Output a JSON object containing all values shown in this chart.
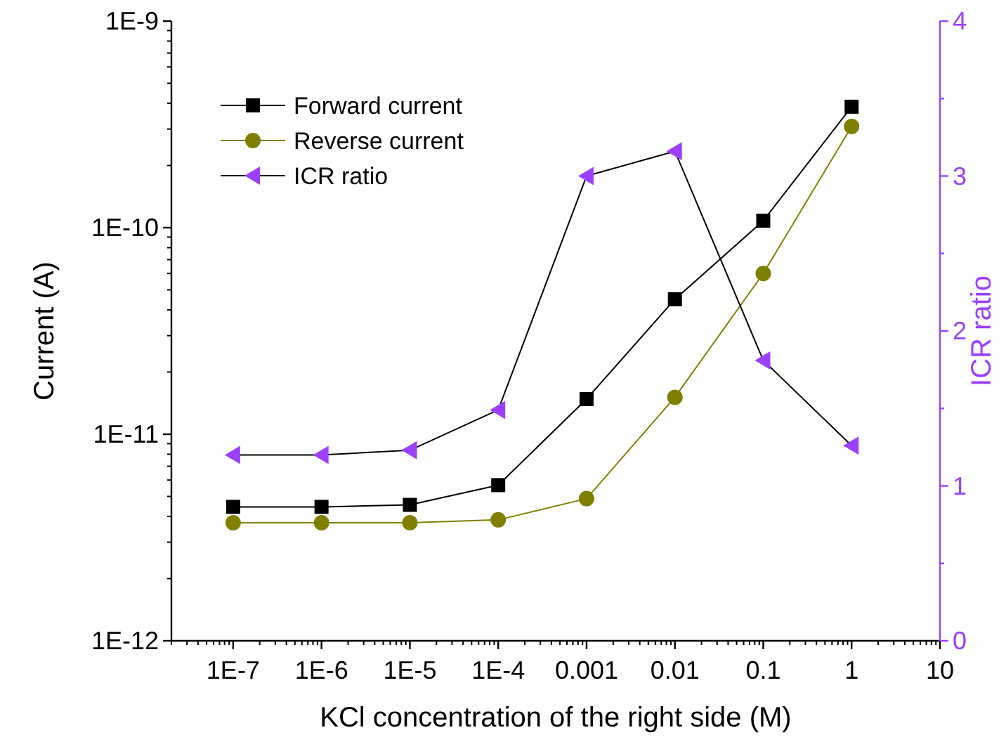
{
  "chart_data": {
    "type": "line",
    "xlabel": "KCl concentration of the right side (M)",
    "ylabel": "Current (A)",
    "y2label": "ICR ratio",
    "x": [
      1e-07,
      1e-06,
      1e-05,
      0.0001,
      0.001,
      0.01,
      0.1,
      1
    ],
    "series": [
      {
        "name": "Forward current",
        "color": "#000000",
        "marker": "square",
        "values": [
          4.45e-12,
          4.45e-12,
          4.55e-12,
          5.67e-12,
          1.48e-11,
          4.5e-11,
          1.08e-10,
          3.85e-10
        ]
      },
      {
        "name": "Reverse current",
        "color": "#808000",
        "marker": "circle",
        "values": [
          3.73e-12,
          3.73e-12,
          3.73e-12,
          3.85e-12,
          4.88e-12,
          1.51e-11,
          6e-11,
          3.09e-10
        ]
      },
      {
        "name": "ICR ratio",
        "color": "#9b40ff",
        "marker": "triangle",
        "axis": "y2",
        "values": [
          1.2,
          1.2,
          1.23,
          1.49,
          3.0,
          3.16,
          1.81,
          1.26
        ]
      }
    ],
    "log": "xy",
    "xlim": [
      2e-08,
      10
    ],
    "xticks": [
      {
        "value": 1e-07,
        "label": "1E-7"
      },
      {
        "value": 1e-06,
        "label": "1E-6"
      },
      {
        "value": 1e-05,
        "label": "1E-5"
      },
      {
        "value": 0.0001,
        "label": "1E-4"
      },
      0.001,
      0.01,
      0.1,
      1,
      10
    ],
    "ylim": [
      1e-12,
      1e-09
    ],
    "yticks": [
      {
        "value": 1e-12,
        "label": "1E-12"
      },
      {
        "value": 1e-11,
        "label": "1E-11"
      },
      {
        "value": 1e-10,
        "label": "1E-10"
      },
      {
        "value": 1e-09,
        "label": "1E-9"
      }
    ],
    "y2lim": [
      0,
      4
    ],
    "y2ticks": [
      0,
      {
        "value": 0.5,
        "label": null
      },
      1,
      {
        "value": 1.5,
        "label": null
      },
      2,
      {
        "value": 2.5,
        "label": null
      },
      3,
      {
        "value": 3.5,
        "label": null
      },
      4
    ],
    "legend": "top left",
    "grid": false
  }
}
